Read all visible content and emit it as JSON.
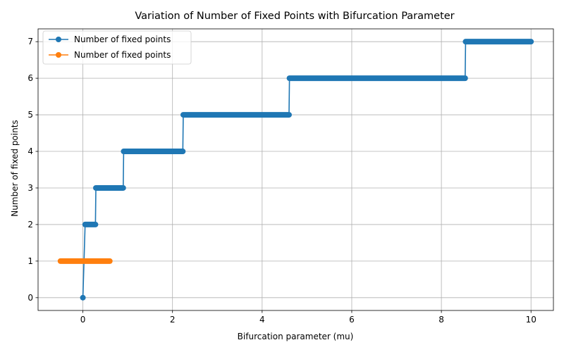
{
  "chart_data": {
    "type": "line",
    "title": "Variation of Number of Fixed Points with Bifurcation Parameter",
    "xlabel": "Bifurcation parameter (mu)",
    "ylabel": "Number of fixed points",
    "xlim": [
      -1.0,
      10.5
    ],
    "ylim": [
      -0.35,
      7.35
    ],
    "xticks": [
      0,
      2,
      4,
      6,
      8,
      10
    ],
    "yticks": [
      0,
      1,
      2,
      3,
      4,
      5,
      6,
      7
    ],
    "grid": true,
    "legend_position": "upper-left",
    "series": [
      {
        "name": "Number of fixed points",
        "color": "#1f77b4",
        "marker": "circle",
        "segments": [
          {
            "x_start": 0.0,
            "x_end": 0.0,
            "y": 0
          },
          {
            "x_start": 0.05,
            "x_end": 0.28,
            "y": 2
          },
          {
            "x_start": 0.29,
            "x_end": 0.9,
            "y": 3
          },
          {
            "x_start": 0.91,
            "x_end": 2.23,
            "y": 4
          },
          {
            "x_start": 2.24,
            "x_end": 4.6,
            "y": 5
          },
          {
            "x_start": 4.61,
            "x_end": 8.53,
            "y": 6
          },
          {
            "x_start": 8.54,
            "x_end": 10.0,
            "y": 7
          }
        ]
      },
      {
        "name": "Number of fixed points",
        "color": "#ff7f0e",
        "marker": "circle",
        "segments": [
          {
            "x_start": -0.5,
            "x_end": 0.6,
            "y": 1
          }
        ]
      }
    ]
  }
}
